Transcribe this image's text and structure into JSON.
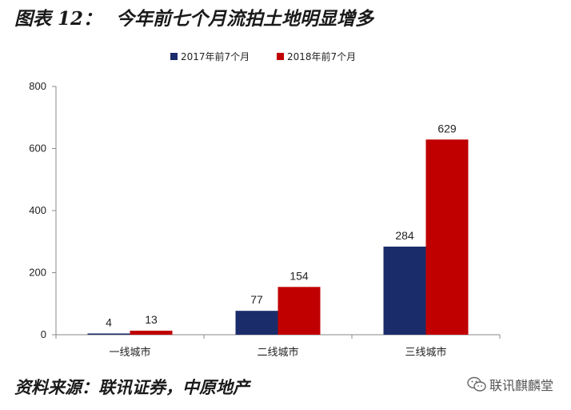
{
  "figure": {
    "label": "图表 12：",
    "title": "今年前七个月流拍土地明显增多"
  },
  "source": {
    "text": "资料来源：联讯证券，中原地产"
  },
  "watermark": {
    "icon": "wechat-icon",
    "text": "联讯麒麟堂"
  },
  "chart_data": {
    "type": "bar",
    "categories": [
      "一线城市",
      "二线城市",
      "三线城市"
    ],
    "series": [
      {
        "name": "2017年前7个月",
        "values": [
          4,
          77,
          284
        ],
        "color": "#1b2c6b"
      },
      {
        "name": "2018年前7个月",
        "values": [
          13,
          154,
          629
        ],
        "color": "#c00000"
      }
    ],
    "ylim": [
      0,
      800
    ],
    "yticks": [
      "0",
      "200",
      "400",
      "600",
      "800"
    ],
    "legend": "top",
    "grid": false
  }
}
